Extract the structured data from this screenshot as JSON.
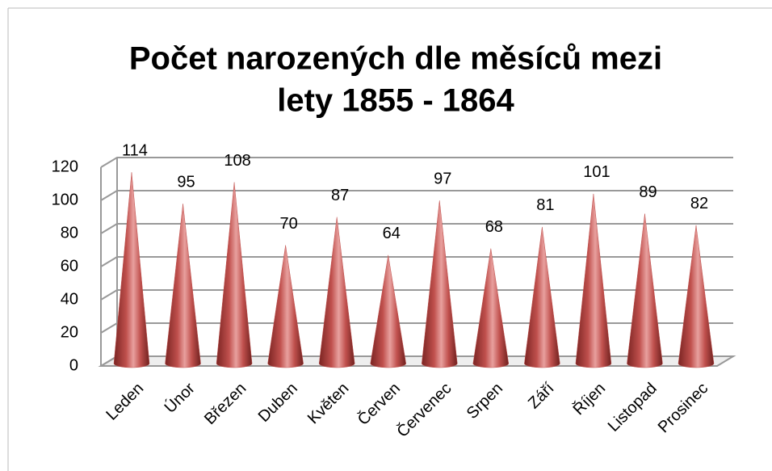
{
  "chart_data": {
    "type": "cone",
    "title": [
      "Počet narozených dle měsíců mezi",
      "lety 1855 - 1864"
    ],
    "categories": [
      "Leden",
      "Únor",
      "Březen",
      "Duben",
      "Květen",
      "Červen",
      "Červenec",
      "Srpen",
      "Září",
      "Říjen",
      "Listopad",
      "Prosinec"
    ],
    "values": [
      114,
      95,
      108,
      70,
      87,
      64,
      97,
      68,
      81,
      101,
      89,
      82
    ],
    "color": "#c0504d",
    "ylim": [
      0,
      120
    ],
    "yticks": [
      0,
      20,
      40,
      60,
      80,
      100,
      120
    ],
    "grid": true
  }
}
